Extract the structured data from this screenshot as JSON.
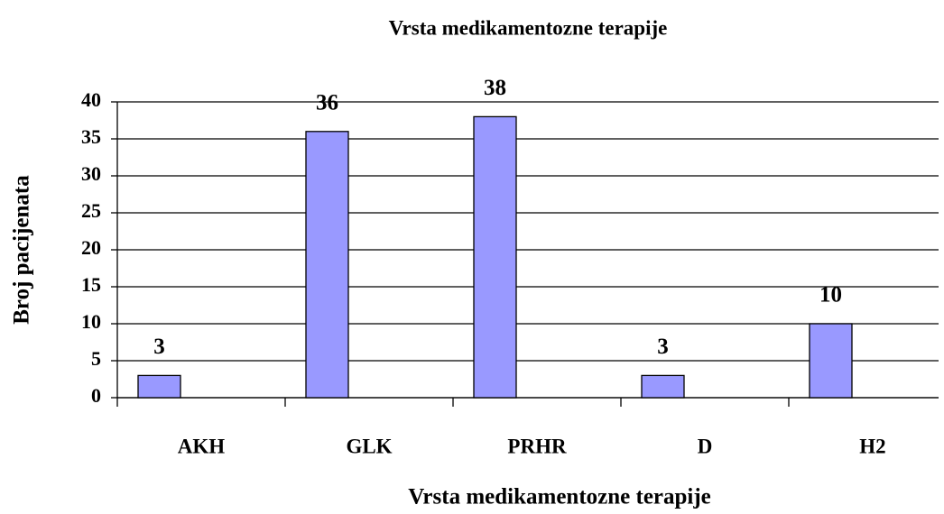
{
  "chart_data": {
    "type": "bar",
    "title": "Vrsta medikamentozne terapije",
    "x_label": "Vrsta medikamentozne terapije",
    "y_label": "Broj pacijenata",
    "categories": [
      "AKH",
      "GLK",
      "PRHR",
      "D",
      "H2"
    ],
    "values": [
      3,
      36,
      38,
      3,
      10
    ],
    "color": "#9999ff",
    "ylim": [
      0,
      40
    ],
    "yticks": [
      0,
      5,
      10,
      15,
      20,
      25,
      30,
      35,
      40
    ],
    "grid": true
  }
}
